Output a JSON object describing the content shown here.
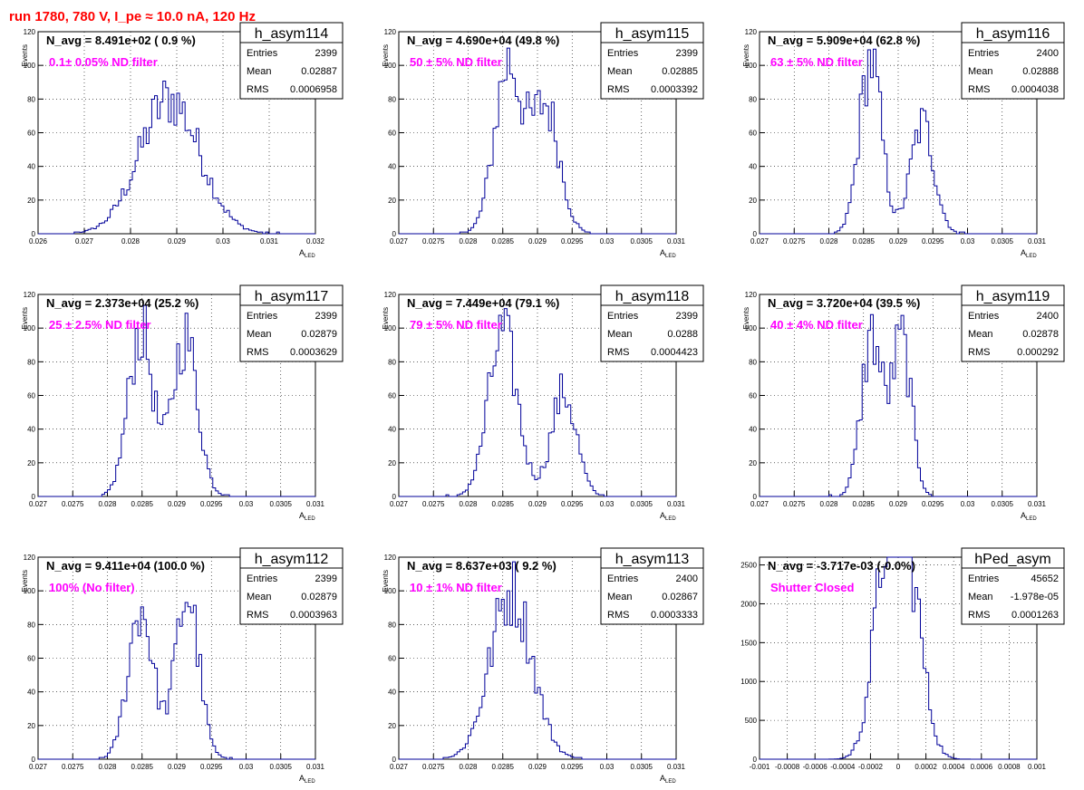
{
  "run_title": "run 1780,   780 V, I_pe ≈ 10.0 nA, 120 Hz",
  "stat_labels": {
    "entries": "Entries",
    "mean": "Mean",
    "rms": "RMS"
  },
  "chart_data": [
    {
      "type": "histogram",
      "name": "h_asym114",
      "navg": "N_avg = 8.491e+02 ( 0.9 %)",
      "filter": "0.1± 0.05% ND filter",
      "entries": "2399",
      "mean": "0.02887",
      "rms": "0.0006958",
      "xlabel": "A",
      "xlabel_sub": "LED",
      "ylabel": "Events",
      "xlim": [
        0.026,
        0.032
      ],
      "ylim": [
        0,
        120
      ],
      "xticks": [
        0.026,
        0.027,
        0.028,
        0.029,
        0.03,
        0.031,
        0.032
      ],
      "xtick_labels": [
        "0.026",
        "0.027",
        "0.028",
        "0.029",
        "0.03",
        "0.031",
        "0.032"
      ],
      "yticks": [
        0,
        20,
        40,
        60,
        80,
        100,
        120
      ],
      "shape": [
        [
          0.02885,
          0.00065,
          80
        ]
      ]
    },
    {
      "type": "histogram",
      "name": "h_asym115",
      "navg": "N_avg = 4.690e+04 (49.8 %)",
      "filter": "50 ± 5% ND filter",
      "entries": "2399",
      "mean": "0.02885",
      "rms": "0.0003392",
      "xlabel": "A",
      "xlabel_sub": "LED",
      "ylabel": "Events",
      "xlim": [
        0.027,
        0.031
      ],
      "ylim": [
        0,
        120
      ],
      "xticks": [
        0.027,
        0.0275,
        0.028,
        0.0285,
        0.029,
        0.0295,
        0.03,
        0.0305,
        0.031
      ],
      "xtick_labels": [
        "0.027",
        "0.0275",
        "0.028",
        "0.0285",
        "0.029",
        "0.0295",
        "0.03",
        "0.0305",
        "0.031"
      ],
      "yticks": [
        0,
        20,
        40,
        60,
        80,
        100,
        120
      ],
      "shape": [
        [
          0.02858,
          0.0002,
          100
        ],
        [
          0.02912,
          0.0002,
          75
        ]
      ]
    },
    {
      "type": "histogram",
      "name": "h_asym116",
      "navg": "N_avg = 5.909e+04 (62.8 %)",
      "filter": "63 ± 5% ND filter",
      "entries": "2400",
      "mean": "0.02888",
      "rms": "0.0004038",
      "xlabel": "A",
      "xlabel_sub": "LED",
      "ylabel": "Events",
      "xlim": [
        0.027,
        0.031
      ],
      "ylim": [
        0,
        120
      ],
      "xticks": [
        0.027,
        0.0275,
        0.028,
        0.0285,
        0.029,
        0.0295,
        0.03,
        0.0305,
        0.031
      ],
      "xtick_labels": [
        "0.027",
        "0.0275",
        "0.028",
        "0.0285",
        "0.029",
        "0.0295",
        "0.03",
        "0.0305",
        "0.031"
      ],
      "yticks": [
        0,
        20,
        40,
        60,
        80,
        100,
        120
      ],
      "shape": [
        [
          0.0286,
          0.00016,
          103
        ],
        [
          0.02935,
          0.00017,
          65
        ]
      ]
    },
    {
      "type": "histogram",
      "name": "h_asym117",
      "navg": "N_avg = 2.373e+04 (25.2 %)",
      "filter": "25 ± 2.5% ND filter",
      "entries": "2399",
      "mean": "0.02879",
      "rms": "0.0003629",
      "xlabel": "A",
      "xlabel_sub": "LED",
      "ylabel": "Events",
      "xlim": [
        0.027,
        0.031
      ],
      "ylim": [
        0,
        120
      ],
      "xticks": [
        0.027,
        0.0275,
        0.028,
        0.0285,
        0.029,
        0.0295,
        0.03,
        0.0305,
        0.031
      ],
      "xtick_labels": [
        "0.027",
        "0.0275",
        "0.028",
        "0.0285",
        "0.029",
        "0.0295",
        "0.03",
        "0.0305",
        "0.031"
      ],
      "yticks": [
        0,
        20,
        40,
        60,
        80,
        100,
        120
      ],
      "shape": [
        [
          0.02848,
          0.00018,
          98
        ],
        [
          0.02912,
          0.00018,
          95
        ]
      ]
    },
    {
      "type": "histogram",
      "name": "h_asym118",
      "navg": "N_avg = 7.449e+04 (79.1 %)",
      "filter": "79 ± 5% ND filter",
      "entries": "2399",
      "mean": "0.0288",
      "rms": "0.0004423",
      "xlabel": "A",
      "xlabel_sub": "LED",
      "ylabel": "Events",
      "xlim": [
        0.027,
        0.031
      ],
      "ylim": [
        0,
        120
      ],
      "xticks": [
        0.027,
        0.0275,
        0.028,
        0.0285,
        0.029,
        0.0295,
        0.03,
        0.0305,
        0.031
      ],
      "xtick_labels": [
        "0.027",
        "0.0275",
        "0.028",
        "0.0285",
        "0.029",
        "0.0295",
        "0.03",
        "0.0305",
        "0.031"
      ],
      "yticks": [
        0,
        20,
        40,
        60,
        80,
        100,
        120
      ],
      "shape": [
        [
          0.0285,
          0.00021,
          96
        ],
        [
          0.02938,
          0.00018,
          62
        ]
      ]
    },
    {
      "type": "histogram",
      "name": "h_asym119",
      "navg": "N_avg = 3.720e+04 (39.5 %)",
      "filter": "40 ± 4% ND filter",
      "entries": "2400",
      "mean": "0.02878",
      "rms": "0.000292",
      "xlabel": "A",
      "xlabel_sub": "LED",
      "ylabel": "Events",
      "xlim": [
        0.027,
        0.031
      ],
      "ylim": [
        0,
        120
      ],
      "xticks": [
        0.027,
        0.0275,
        0.028,
        0.0285,
        0.029,
        0.0295,
        0.03,
        0.0305,
        0.031
      ],
      "xtick_labels": [
        "0.027",
        "0.0275",
        "0.028",
        "0.0285",
        "0.029",
        "0.0295",
        "0.03",
        "0.0305",
        "0.031"
      ],
      "yticks": [
        0,
        20,
        40,
        60,
        80,
        100,
        120
      ],
      "shape": [
        [
          0.02862,
          0.00015,
          95
        ],
        [
          0.02905,
          0.00014,
          92
        ]
      ]
    },
    {
      "type": "histogram",
      "name": "h_asym112",
      "navg": "N_avg = 9.411e+04 (100.0 %)",
      "filter": "100% (No filter)",
      "entries": "2399",
      "mean": "0.02879",
      "rms": "0.0003963",
      "xlabel": "A",
      "xlabel_sub": "LED",
      "ylabel": "Events",
      "xlim": [
        0.027,
        0.031
      ],
      "ylim": [
        0,
        120
      ],
      "xticks": [
        0.027,
        0.0275,
        0.028,
        0.0285,
        0.029,
        0.0295,
        0.03,
        0.0305,
        0.031
      ],
      "xtick_labels": [
        "0.027",
        "0.0275",
        "0.028",
        "0.0285",
        "0.029",
        "0.0295",
        "0.03",
        "0.0305",
        "0.031"
      ],
      "yticks": [
        0,
        20,
        40,
        60,
        80,
        100,
        120
      ],
      "shape": [
        [
          0.02848,
          0.00018,
          90
        ],
        [
          0.02915,
          0.00017,
          98
        ]
      ]
    },
    {
      "type": "histogram",
      "name": "h_asym113",
      "navg": "N_avg = 8.637e+03 ( 9.2 %)",
      "filter": "10 ± 1% ND filter",
      "entries": "2400",
      "mean": "0.02867",
      "rms": "0.0003333",
      "xlabel": "A",
      "xlabel_sub": "LED",
      "ylabel": "Events",
      "xlim": [
        0.027,
        0.031
      ],
      "ylim": [
        0,
        120
      ],
      "xticks": [
        0.027,
        0.0275,
        0.028,
        0.0285,
        0.029,
        0.0295,
        0.03,
        0.0305,
        0.031
      ],
      "xtick_labels": [
        "0.027",
        "0.0275",
        "0.028",
        "0.0285",
        "0.029",
        "0.0295",
        "0.03",
        "0.0305",
        "0.031"
      ],
      "yticks": [
        0,
        20,
        40,
        60,
        80,
        100,
        120
      ],
      "shape": [
        [
          0.02862,
          0.0003,
          100
        ]
      ]
    },
    {
      "type": "histogram",
      "name": "hPed_asym",
      "navg": "N_avg = -3.717e-03 (-0.0%)",
      "filter": "Shutter Closed",
      "entries": "45652",
      "mean": "-1.978e-05",
      "rms": "0.0001263",
      "xlabel": "",
      "xlabel_sub": "",
      "ylabel": "",
      "xlim": [
        -0.001,
        0.001
      ],
      "ylim": [
        0,
        2600
      ],
      "xticks": [
        -0.001,
        -0.0008,
        -0.0006,
        -0.0004,
        -0.0002,
        0,
        0.0002,
        0.0004,
        0.0006,
        0.0008,
        0.001
      ],
      "xtick_labels": [
        "-0.001",
        "-0.0008",
        "-0.0006",
        "-0.0004",
        "-0.0002",
        "0",
        "0.0002",
        "0.0004",
        "0.0006",
        "0.0008",
        "0.001"
      ],
      "yticks": [
        0,
        500,
        1000,
        1500,
        2000,
        2500
      ],
      "shape": [
        [
          -8e-05,
          0.0001,
          2450
        ],
        [
          8e-05,
          0.0001,
          2100
        ]
      ]
    }
  ]
}
